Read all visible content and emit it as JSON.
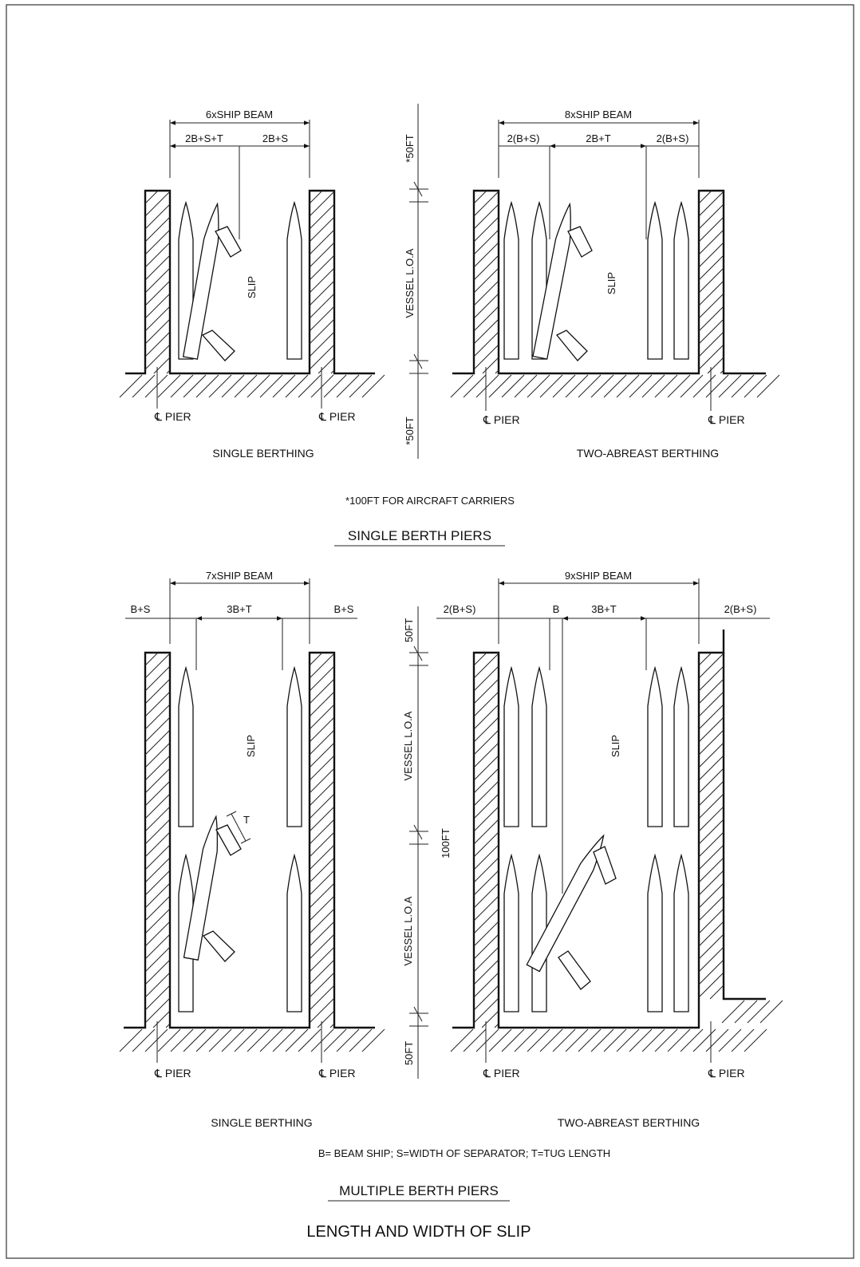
{
  "single_berth": {
    "section_title": "SINGLE BERTH PIERS",
    "footnote": "*100FT FOR AIRCRAFT CARRIERS",
    "left": {
      "width_label": "6xSHIP BEAM",
      "dims": [
        "2B+S+T",
        "2B+S"
      ],
      "slip_label": "SLIP",
      "pier_labels": [
        "℄ PIER",
        "℄ PIER"
      ],
      "caption": "SINGLE BERTHING"
    },
    "center": {
      "top_label": "*50FT",
      "mid_label": "VESSEL L.O.A",
      "bottom_label": "*50FT"
    },
    "right": {
      "width_label": "8xSHIP BEAM",
      "dims": [
        "2(B+S)",
        "2B+T",
        "2(B+S)"
      ],
      "slip_label": "SLIP",
      "pier_labels": [
        "℄ PIER",
        "℄ PIER"
      ],
      "caption": "TWO-ABREAST BERTHING"
    }
  },
  "multiple_berth": {
    "section_title": "MULTIPLE BERTH PIERS",
    "legend": "B= BEAM SHIP;  S=WIDTH OF SEPARATOR;  T=TUG LENGTH",
    "left": {
      "width_label": "7xSHIP BEAM",
      "dims": [
        "B+S",
        "3B+T",
        "B+S"
      ],
      "tug_label": "T",
      "slip_label": "SLIP",
      "pier_labels": [
        "℄ PIER",
        "℄ PIER"
      ],
      "caption": "SINGLE BERTHING"
    },
    "center": {
      "top_label": "50FT",
      "vessel_label_1": "VESSEL L.O.A",
      "gap_label": "100FT",
      "vessel_label_2": "VESSEL L.O.A",
      "bottom_label": "50FT"
    },
    "right": {
      "width_label": "9xSHIP BEAM",
      "dims": [
        "2(B+S)",
        "B",
        "3B+T",
        "2(B+S)"
      ],
      "slip_label": "SLIP",
      "pier_labels": [
        "℄ PIER",
        "℄ PIER"
      ],
      "caption": "TWO-ABREAST BERTHING"
    }
  },
  "title": "LENGTH AND WIDTH OF SLIP"
}
